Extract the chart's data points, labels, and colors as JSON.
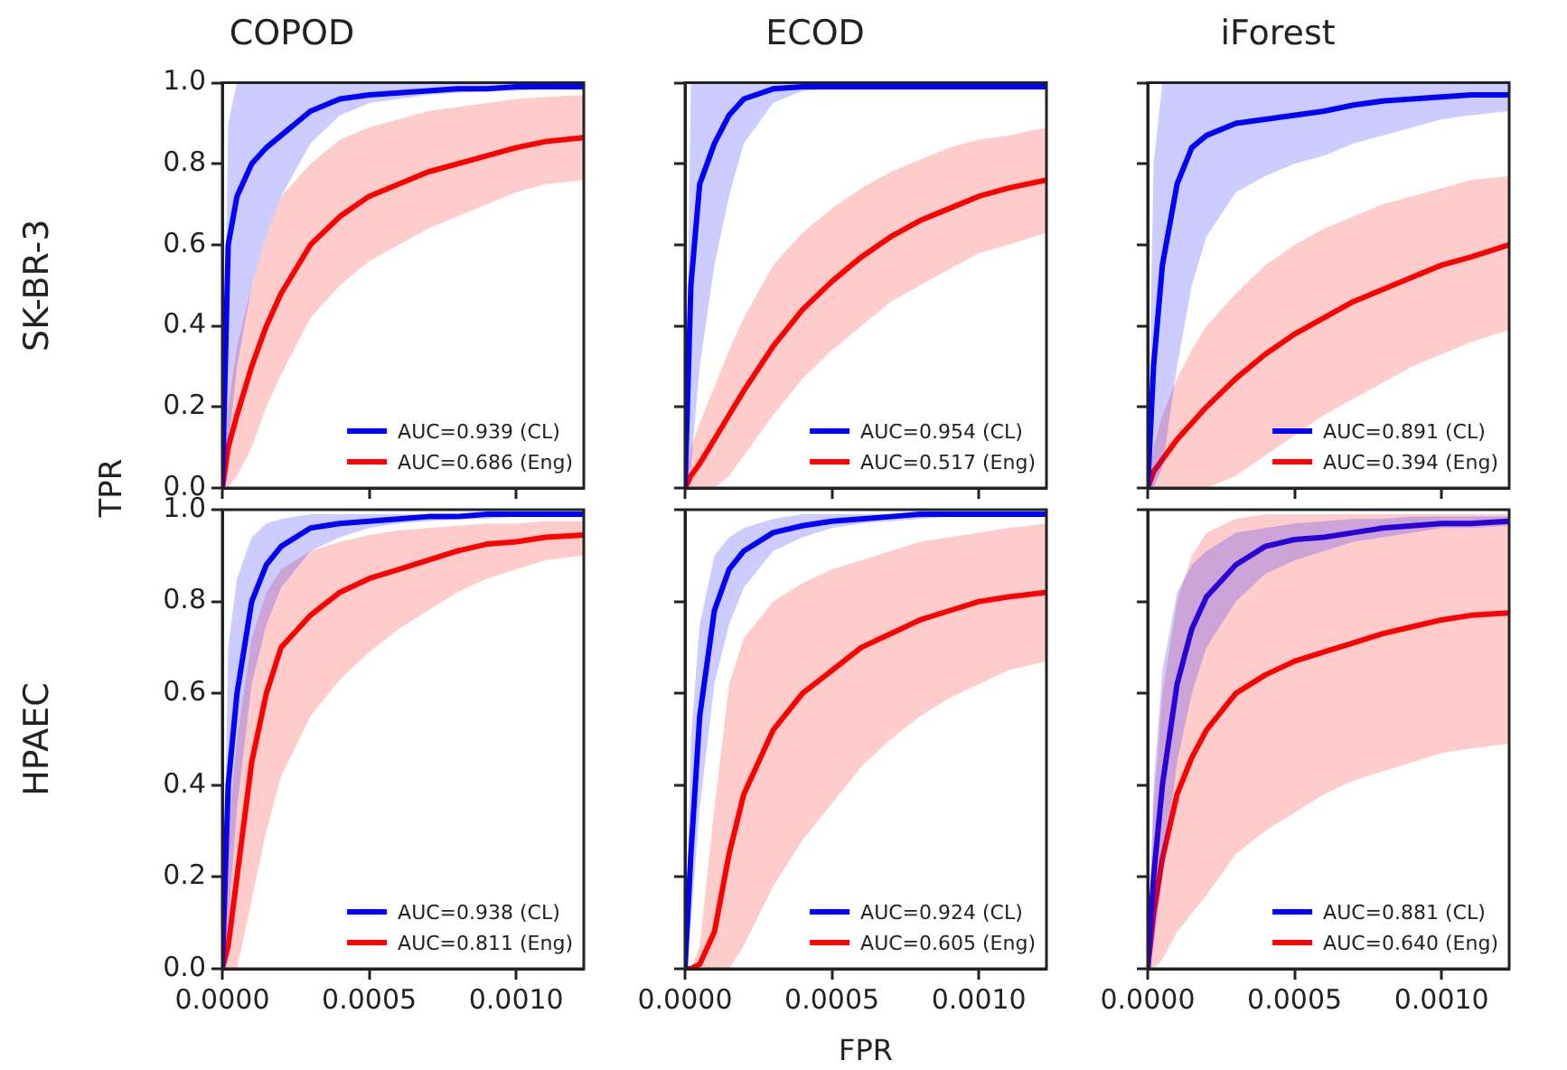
{
  "chart_data": [
    {
      "type": "line",
      "title": "COPOD",
      "ylabel": "SK-BR-3",
      "annotations": [
        "TPR"
      ],
      "legend": "bottom right",
      "tick_labels": "y",
      "x": [
        0,
        2e-05,
        5e-05,
        0.0001,
        0.00015,
        0.0002,
        0.0003,
        0.0004,
        0.0005,
        0.0006,
        0.0007,
        0.0008,
        0.0009,
        0.001,
        0.0011,
        0.00123
      ],
      "xlim": [
        0,
        0.00123
      ],
      "xticks": [
        {
          "value": 0,
          "label": null
        },
        {
          "value": 0.0005,
          "label": null
        },
        {
          "value": 0.001,
          "label": null
        }
      ],
      "ylim": [
        0,
        1
      ],
      "yticks": [
        {
          "value": 0,
          "label": "0.0"
        },
        0.2,
        0.4,
        0.6,
        0.8,
        {
          "value": 1,
          "label": "1.0"
        }
      ],
      "series": [
        {
          "name": "AUC=0.939 (CL)",
          "color": "#0000ff",
          "values": [
            0,
            0.6,
            0.72,
            0.8,
            0.84,
            0.87,
            0.93,
            0.96,
            0.97,
            0.975,
            0.98,
            0.985,
            0.985,
            0.99,
            0.99,
            0.99
          ],
          "lower": [
            0,
            0.1,
            0.3,
            0.5,
            0.62,
            0.72,
            0.85,
            0.92,
            0.95,
            0.96,
            0.97,
            0.975,
            0.98,
            0.98,
            0.985,
            0.985
          ],
          "upper": [
            0,
            0.9,
            1,
            1,
            1,
            1,
            1,
            1,
            1,
            1,
            1,
            1,
            1,
            1,
            1,
            1
          ]
        },
        {
          "name": "AUC=0.686 (Eng)",
          "color": "#ff0000",
          "values": [
            0,
            0.1,
            0.18,
            0.3,
            0.4,
            0.48,
            0.6,
            0.67,
            0.72,
            0.75,
            0.78,
            0.8,
            0.82,
            0.84,
            0.855,
            0.865
          ],
          "lower": [
            0,
            0,
            0.03,
            0.1,
            0.2,
            0.28,
            0.42,
            0.5,
            0.56,
            0.6,
            0.64,
            0.67,
            0.7,
            0.73,
            0.75,
            0.76
          ],
          "upper": [
            0,
            0.2,
            0.35,
            0.5,
            0.62,
            0.72,
            0.8,
            0.86,
            0.89,
            0.91,
            0.93,
            0.94,
            0.95,
            0.96,
            0.965,
            0.97
          ]
        }
      ]
    },
    {
      "type": "line",
      "title": "ECOD",
      "legend": "bottom right",
      "tick_labels": false,
      "x": [
        0,
        2e-05,
        5e-05,
        0.0001,
        0.00015,
        0.0002,
        0.0003,
        0.0004,
        0.0005,
        0.0006,
        0.0007,
        0.0008,
        0.0009,
        0.001,
        0.0011,
        0.00123
      ],
      "xlim": [
        0,
        0.00123
      ],
      "xticks": [
        {
          "value": 0,
          "label": null
        },
        {
          "value": 0.0005,
          "label": null
        },
        {
          "value": 0.001,
          "label": null
        }
      ],
      "ylim": [
        0,
        1
      ],
      "yticks": [
        {
          "value": 0,
          "label": null
        },
        {
          "value": 0.2,
          "label": null
        },
        {
          "value": 0.4,
          "label": null
        },
        {
          "value": 0.6,
          "label": null
        },
        {
          "value": 0.8,
          "label": null
        },
        {
          "value": 1,
          "label": null
        }
      ],
      "series": [
        {
          "name": "AUC=0.954 (CL)",
          "color": "#0000ff",
          "values": [
            0,
            0.5,
            0.75,
            0.85,
            0.92,
            0.96,
            0.985,
            0.99,
            0.99,
            0.99,
            0.99,
            0.99,
            0.99,
            0.99,
            0.99,
            0.99
          ],
          "lower": [
            0,
            0.05,
            0.3,
            0.55,
            0.72,
            0.85,
            0.95,
            0.98,
            0.985,
            0.99,
            0.99,
            0.99,
            0.99,
            0.99,
            0.99,
            0.99
          ],
          "upper": [
            0,
            1,
            1,
            1,
            1,
            1,
            1,
            1,
            1,
            1,
            1,
            1,
            1,
            1,
            1,
            1
          ]
        },
        {
          "name": "AUC=0.517 (Eng)",
          "color": "#ff0000",
          "values": [
            0,
            0.03,
            0.06,
            0.12,
            0.18,
            0.24,
            0.35,
            0.44,
            0.51,
            0.57,
            0.62,
            0.66,
            0.69,
            0.72,
            0.74,
            0.76
          ],
          "lower": [
            0,
            0,
            0,
            0,
            0.03,
            0.08,
            0.18,
            0.27,
            0.34,
            0.4,
            0.46,
            0.5,
            0.54,
            0.58,
            0.6,
            0.63
          ],
          "upper": [
            0,
            0.1,
            0.16,
            0.25,
            0.34,
            0.42,
            0.55,
            0.63,
            0.69,
            0.74,
            0.78,
            0.81,
            0.84,
            0.86,
            0.87,
            0.89
          ]
        }
      ]
    },
    {
      "type": "line",
      "title": "iForest",
      "legend": "bottom right",
      "tick_labels": false,
      "x": [
        0,
        2e-05,
        5e-05,
        0.0001,
        0.00015,
        0.0002,
        0.0003,
        0.0004,
        0.0005,
        0.0006,
        0.0007,
        0.0008,
        0.0009,
        0.001,
        0.0011,
        0.00123
      ],
      "xlim": [
        0,
        0.00123
      ],
      "xticks": [
        {
          "value": 0,
          "label": null
        },
        {
          "value": 0.0005,
          "label": null
        },
        {
          "value": 0.001,
          "label": null
        }
      ],
      "ylim": [
        0,
        1
      ],
      "yticks": [
        {
          "value": 0,
          "label": null
        },
        {
          "value": 0.2,
          "label": null
        },
        {
          "value": 0.4,
          "label": null
        },
        {
          "value": 0.6,
          "label": null
        },
        {
          "value": 0.8,
          "label": null
        },
        {
          "value": 1,
          "label": null
        }
      ],
      "series": [
        {
          "name": "AUC=0.891 (CL)",
          "color": "#0000ff",
          "values": [
            0,
            0.3,
            0.55,
            0.75,
            0.84,
            0.87,
            0.9,
            0.91,
            0.92,
            0.93,
            0.945,
            0.955,
            0.96,
            0.965,
            0.97,
            0.97
          ],
          "lower": [
            0,
            0,
            0.05,
            0.3,
            0.5,
            0.62,
            0.73,
            0.77,
            0.8,
            0.82,
            0.85,
            0.87,
            0.89,
            0.91,
            0.92,
            0.93
          ],
          "upper": [
            0,
            0.8,
            1,
            1,
            1,
            1,
            1,
            1,
            1,
            1,
            1,
            1,
            1,
            1,
            1,
            1
          ]
        },
        {
          "name": "AUC=0.394 (Eng)",
          "color": "#ff0000",
          "values": [
            0,
            0.04,
            0.07,
            0.12,
            0.16,
            0.2,
            0.27,
            0.33,
            0.38,
            0.42,
            0.46,
            0.49,
            0.52,
            0.55,
            0.57,
            0.6
          ],
          "lower": [
            0,
            0,
            0,
            0,
            0,
            0,
            0.03,
            0.08,
            0.13,
            0.18,
            0.22,
            0.26,
            0.3,
            0.33,
            0.36,
            0.39
          ],
          "upper": [
            0,
            0.1,
            0.18,
            0.27,
            0.34,
            0.4,
            0.48,
            0.55,
            0.6,
            0.64,
            0.67,
            0.7,
            0.72,
            0.74,
            0.76,
            0.77
          ]
        }
      ]
    },
    {
      "type": "line",
      "ylabel": "HPAEC",
      "legend": "bottom right",
      "x": [
        0,
        2e-05,
        5e-05,
        0.0001,
        0.00015,
        0.0002,
        0.0003,
        0.0004,
        0.0005,
        0.0006,
        0.0007,
        0.0008,
        0.0009,
        0.001,
        0.0011,
        0.00123
      ],
      "xlim": [
        0,
        0.00123
      ],
      "xticks": [
        {
          "value": 0,
          "label": "0.0000"
        },
        {
          "value": 0.0005,
          "label": "0.0005"
        },
        {
          "value": 0.001,
          "label": "0.0010"
        }
      ],
      "ylim": [
        0,
        1
      ],
      "yticks": [
        {
          "value": 0,
          "label": "0.0"
        },
        0.2,
        0.4,
        0.6,
        0.8,
        {
          "value": 1,
          "label": "1.0"
        }
      ],
      "series": [
        {
          "name": "AUC=0.938 (CL)",
          "color": "#0000ff",
          "values": [
            0,
            0.4,
            0.6,
            0.8,
            0.88,
            0.92,
            0.96,
            0.97,
            0.975,
            0.98,
            0.985,
            0.985,
            0.99,
            0.99,
            0.99,
            0.99
          ],
          "lower": [
            0,
            0.1,
            0.35,
            0.62,
            0.75,
            0.83,
            0.91,
            0.94,
            0.96,
            0.97,
            0.975,
            0.98,
            0.98,
            0.985,
            0.985,
            0.985
          ],
          "upper": [
            0,
            0.7,
            0.85,
            0.94,
            0.97,
            0.98,
            0.99,
            0.99,
            0.99,
            0.99,
            0.99,
            0.99,
            0.99,
            0.99,
            0.99,
            0.99
          ]
        },
        {
          "name": "AUC=0.811 (Eng)",
          "color": "#ff0000",
          "values": [
            0,
            0.05,
            0.2,
            0.45,
            0.6,
            0.7,
            0.77,
            0.82,
            0.85,
            0.87,
            0.89,
            0.91,
            0.925,
            0.93,
            0.94,
            0.945
          ],
          "lower": [
            0,
            0,
            0,
            0.15,
            0.3,
            0.42,
            0.55,
            0.63,
            0.69,
            0.74,
            0.78,
            0.82,
            0.85,
            0.87,
            0.89,
            0.9
          ],
          "upper": [
            0,
            0.3,
            0.5,
            0.72,
            0.82,
            0.87,
            0.91,
            0.93,
            0.945,
            0.955,
            0.96,
            0.965,
            0.97,
            0.97,
            0.975,
            0.975
          ]
        }
      ]
    },
    {
      "type": "line",
      "xlabel": "FPR",
      "legend": "bottom right",
      "tick_labels": "x",
      "x": [
        0,
        2e-05,
        5e-05,
        0.0001,
        0.00015,
        0.0002,
        0.0003,
        0.0004,
        0.0005,
        0.0006,
        0.0007,
        0.0008,
        0.0009,
        0.001,
        0.0011,
        0.00123
      ],
      "xlim": [
        0,
        0.00123
      ],
      "xticks": [
        {
          "value": 0,
          "label": "0.0000"
        },
        {
          "value": 0.0005,
          "label": "0.0005"
        },
        {
          "value": 0.001,
          "label": "0.0010"
        }
      ],
      "ylim": [
        0,
        1
      ],
      "yticks": [
        {
          "value": 0,
          "label": null
        },
        {
          "value": 0.2,
          "label": null
        },
        {
          "value": 0.4,
          "label": null
        },
        {
          "value": 0.6,
          "label": null
        },
        {
          "value": 0.8,
          "label": null
        },
        {
          "value": 1,
          "label": null
        }
      ],
      "series": [
        {
          "name": "AUC=0.924 (CL)",
          "color": "#0000ff",
          "values": [
            0,
            0.25,
            0.55,
            0.78,
            0.87,
            0.91,
            0.95,
            0.965,
            0.975,
            0.98,
            0.985,
            0.99,
            0.99,
            0.99,
            0.99,
            0.99
          ],
          "lower": [
            0,
            0.1,
            0.35,
            0.62,
            0.75,
            0.83,
            0.91,
            0.94,
            0.96,
            0.97,
            0.975,
            0.98,
            0.985,
            0.985,
            0.985,
            0.985
          ],
          "upper": [
            0,
            0.5,
            0.75,
            0.9,
            0.94,
            0.96,
            0.98,
            0.99,
            0.99,
            0.99,
            0.99,
            0.99,
            0.99,
            0.99,
            0.99,
            0.99
          ]
        },
        {
          "name": "AUC=0.605 (Eng)",
          "color": "#ff0000",
          "values": [
            0,
            0,
            0.01,
            0.08,
            0.25,
            0.38,
            0.52,
            0.6,
            0.65,
            0.7,
            0.73,
            0.76,
            0.78,
            0.8,
            0.81,
            0.82
          ],
          "lower": [
            0,
            0,
            0,
            0,
            0,
            0.05,
            0.18,
            0.28,
            0.36,
            0.44,
            0.5,
            0.55,
            0.59,
            0.62,
            0.65,
            0.67
          ],
          "upper": [
            0,
            0,
            0.05,
            0.35,
            0.62,
            0.72,
            0.8,
            0.84,
            0.87,
            0.89,
            0.91,
            0.93,
            0.94,
            0.95,
            0.96,
            0.97
          ]
        }
      ]
    },
    {
      "type": "line",
      "legend": "bottom right",
      "tick_labels": "x",
      "x": [
        0,
        2e-05,
        5e-05,
        0.0001,
        0.00015,
        0.0002,
        0.0003,
        0.0004,
        0.0005,
        0.0006,
        0.0007,
        0.0008,
        0.0009,
        0.001,
        0.0011,
        0.00123
      ],
      "xlim": [
        0,
        0.00123
      ],
      "xticks": [
        {
          "value": 0,
          "label": "0.0000"
        },
        {
          "value": 0.0005,
          "label": "0.0005"
        },
        {
          "value": 0.001,
          "label": "0.0010"
        }
      ],
      "ylim": [
        0,
        1
      ],
      "yticks": [
        {
          "value": 0,
          "label": null
        },
        {
          "value": 0.2,
          "label": null
        },
        {
          "value": 0.4,
          "label": null
        },
        {
          "value": 0.6,
          "label": null
        },
        {
          "value": 0.8,
          "label": null
        },
        {
          "value": 1,
          "label": null
        }
      ],
      "series": [
        {
          "name": "AUC=0.881 (CL)",
          "color": "#0000ff",
          "values": [
            0,
            0.2,
            0.4,
            0.62,
            0.74,
            0.81,
            0.88,
            0.92,
            0.935,
            0.94,
            0.95,
            0.96,
            0.965,
            0.97,
            0.97,
            0.975
          ],
          "lower": [
            0,
            0.05,
            0.2,
            0.45,
            0.6,
            0.7,
            0.8,
            0.86,
            0.89,
            0.91,
            0.93,
            0.94,
            0.95,
            0.96,
            0.96,
            0.965
          ],
          "upper": [
            0,
            0.4,
            0.65,
            0.82,
            0.88,
            0.91,
            0.95,
            0.96,
            0.97,
            0.975,
            0.98,
            0.98,
            0.985,
            0.985,
            0.985,
            0.985
          ]
        },
        {
          "name": "AUC=0.640 (Eng)",
          "color": "#ff0000",
          "values": [
            0,
            0.12,
            0.24,
            0.38,
            0.46,
            0.52,
            0.6,
            0.64,
            0.67,
            0.69,
            0.71,
            0.73,
            0.745,
            0.76,
            0.77,
            0.775
          ],
          "lower": [
            0,
            0,
            0.02,
            0.08,
            0.12,
            0.16,
            0.25,
            0.3,
            0.34,
            0.38,
            0.41,
            0.43,
            0.45,
            0.47,
            0.48,
            0.49
          ],
          "upper": [
            0,
            0.35,
            0.6,
            0.8,
            0.9,
            0.95,
            0.98,
            0.99,
            0.99,
            0.99,
            0.99,
            0.99,
            0.99,
            0.99,
            0.99,
            0.99
          ]
        }
      ]
    }
  ]
}
